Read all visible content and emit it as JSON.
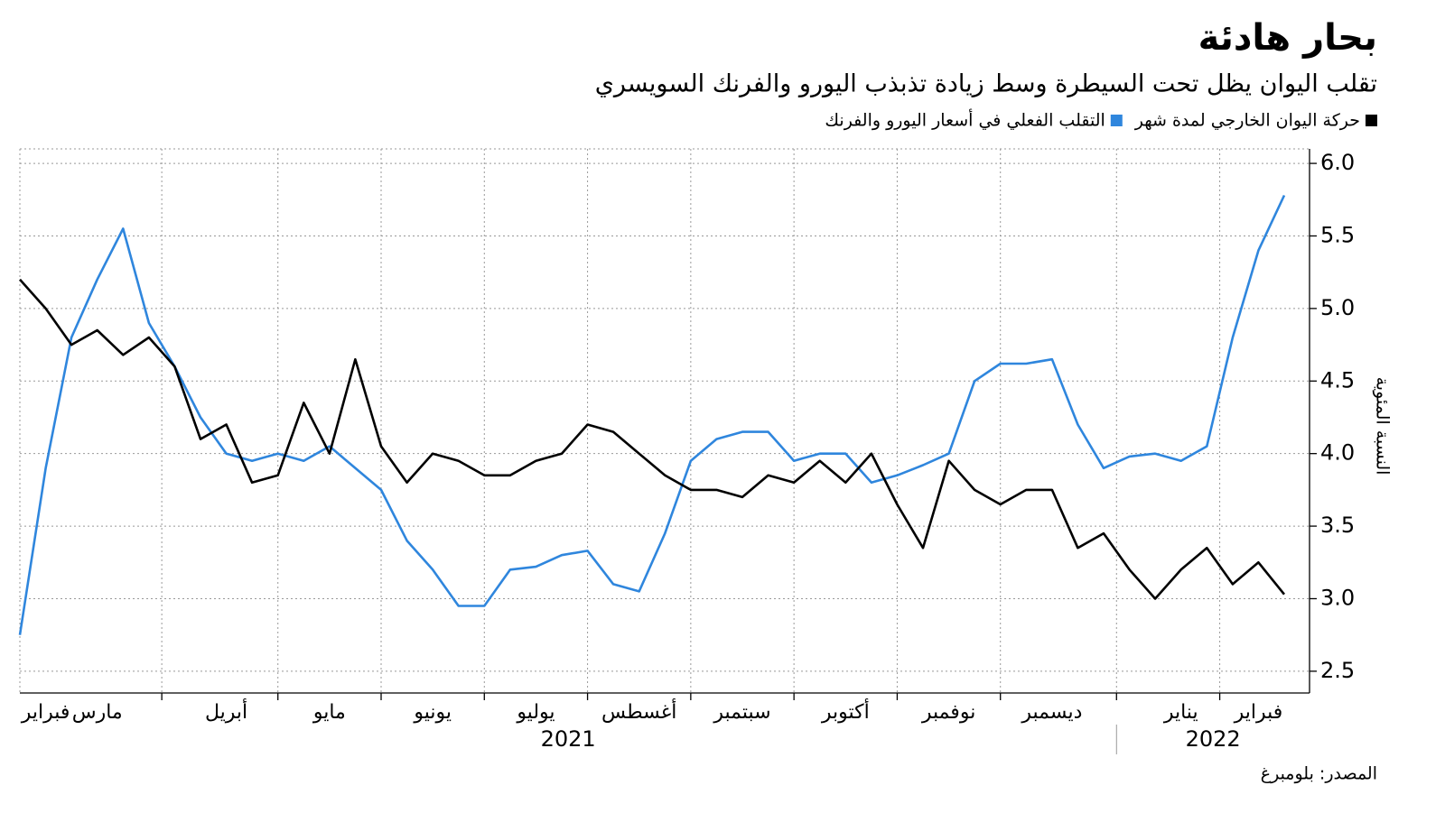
{
  "chart_data": {
    "type": "line",
    "title": "بحار هادئة",
    "subtitle": "تقلب اليوان يظل تحت السيطرة وسط زيادة تذبذب اليورو والفرنك السويسري",
    "y_label": "النسبة المئوية",
    "source": "المصدر: بلومبرغ",
    "x_years": [
      "2021",
      "2022"
    ],
    "categories": [
      null,
      "فبراير",
      null,
      "مارس",
      null,
      null,
      null,
      null,
      "أبريل",
      null,
      null,
      null,
      "مايو",
      null,
      null,
      null,
      "يونيو",
      null,
      null,
      null,
      "يوليو",
      null,
      null,
      null,
      "أغسطس",
      null,
      null,
      null,
      "سبتمبر",
      null,
      null,
      null,
      "أكتوبر",
      null,
      null,
      null,
      "نوفمبر",
      null,
      null,
      null,
      "ديسمبر",
      null,
      null,
      null,
      null,
      "يناير",
      null,
      null,
      "فبراير",
      null
    ],
    "series": [
      {
        "name": "حركة اليوان الخارجي لمدة شهر",
        "color": "#000000",
        "values": [
          5.2,
          5.0,
          4.75,
          4.85,
          4.68,
          4.8,
          4.6,
          4.1,
          4.2,
          3.8,
          3.85,
          4.35,
          4.0,
          4.65,
          4.05,
          3.8,
          4.0,
          3.95,
          3.85,
          3.85,
          3.95,
          4.0,
          4.2,
          4.15,
          4.0,
          3.85,
          3.75,
          3.75,
          3.7,
          3.85,
          3.8,
          3.95,
          3.8,
          4.0,
          3.65,
          3.35,
          3.95,
          3.75,
          3.65,
          3.75,
          3.75,
          3.35,
          3.45,
          3.2,
          3.0,
          3.2,
          3.35,
          3.1,
          3.25,
          3.03
        ]
      },
      {
        "name": "التقلب الفعلي في أسعار اليورو والفرنك",
        "color": "#2f86dd",
        "values": [
          2.75,
          3.9,
          4.8,
          5.2,
          5.55,
          4.9,
          4.6,
          4.25,
          4.0,
          3.95,
          4.0,
          3.95,
          4.05,
          3.9,
          3.75,
          3.4,
          3.2,
          2.95,
          2.95,
          3.2,
          3.22,
          3.3,
          3.33,
          3.1,
          3.05,
          3.45,
          3.95,
          4.1,
          4.15,
          4.15,
          3.95,
          4.0,
          4.0,
          3.8,
          3.85,
          3.92,
          4.0,
          4.5,
          4.62,
          4.62,
          4.65,
          4.2,
          3.9,
          3.98,
          4.0,
          3.95,
          4.05,
          4.8,
          5.4,
          5.78
        ]
      }
    ],
    "ylim": [
      2.35,
      6.1
    ],
    "yticks": [
      {
        "value": 2.5,
        "label": "2.5"
      },
      {
        "value": 3,
        "label": "3.0"
      },
      3.5,
      {
        "value": 4,
        "label": "4.0"
      },
      4.5,
      {
        "value": 5,
        "label": "5.0"
      },
      5.5,
      {
        "value": 6,
        "label": "6.0"
      }
    ],
    "grid": true
  }
}
